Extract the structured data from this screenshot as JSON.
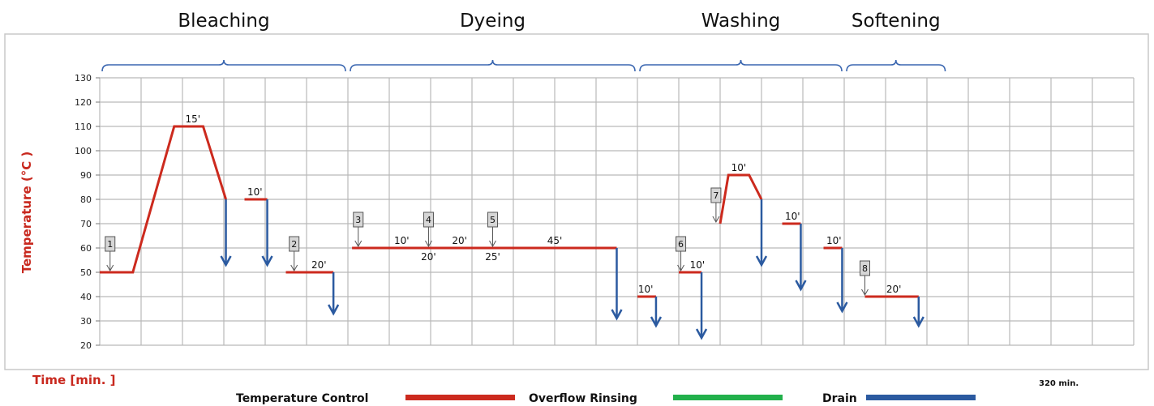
{
  "chart_data": {
    "type": "line",
    "ylabel": "Temperature (°C )",
    "xlabel": "Time [min. ]",
    "end_time_label": "320 min.",
    "ylim": [
      20,
      130
    ],
    "yticks": [
      "20",
      "30",
      "40",
      "50",
      "60",
      "70",
      "80",
      "90",
      "100",
      "110",
      "120",
      "130"
    ],
    "grid": true,
    "stages": [
      {
        "label": "Bleaching",
        "from_col": 0,
        "to_col": 6
      },
      {
        "label": "Dyeing",
        "from_col": 6,
        "to_col": 13
      },
      {
        "label": "Washing",
        "from_col": 13,
        "to_col": 18
      },
      {
        "label": "Softening",
        "from_col": 18,
        "to_col": 20.5
      }
    ],
    "temperature_segments": [
      {
        "points": [
          [
            0,
            50
          ],
          [
            0.8,
            50
          ],
          [
            1.8,
            110
          ],
          [
            2.5,
            110
          ],
          [
            3.05,
            80
          ]
        ]
      },
      {
        "points": [
          [
            3.5,
            80
          ],
          [
            4.05,
            80
          ]
        ]
      },
      {
        "points": [
          [
            4.5,
            50
          ],
          [
            5.65,
            50
          ]
        ]
      },
      {
        "points": [
          [
            6.1,
            60
          ],
          [
            12.5,
            60
          ]
        ]
      },
      {
        "points": [
          [
            13.0,
            40
          ],
          [
            13.45,
            40
          ]
        ]
      },
      {
        "points": [
          [
            14.0,
            50
          ],
          [
            14.55,
            50
          ]
        ]
      },
      {
        "points": [
          [
            15.0,
            70
          ],
          [
            15.2,
            90
          ],
          [
            15.7,
            90
          ],
          [
            16.0,
            80
          ]
        ]
      },
      {
        "points": [
          [
            16.5,
            70
          ],
          [
            16.95,
            70
          ]
        ]
      },
      {
        "points": [
          [
            17.5,
            60
          ],
          [
            17.95,
            60
          ]
        ]
      },
      {
        "points": [
          [
            18.5,
            40
          ],
          [
            19.8,
            40
          ]
        ]
      }
    ],
    "drains": [
      {
        "x": 3.05,
        "from": 80,
        "to": 53
      },
      {
        "x": 4.05,
        "from": 80,
        "to": 53
      },
      {
        "x": 5.65,
        "from": 50,
        "to": 33
      },
      {
        "x": 12.5,
        "from": 60,
        "to": 31
      },
      {
        "x": 13.45,
        "from": 40,
        "to": 28
      },
      {
        "x": 14.55,
        "from": 50,
        "to": 23
      },
      {
        "x": 16.0,
        "from": 80,
        "to": 53
      },
      {
        "x": 16.95,
        "from": 70,
        "to": 43
      },
      {
        "x": 17.95,
        "from": 60,
        "to": 34
      },
      {
        "x": 19.8,
        "from": 40,
        "to": 28
      }
    ],
    "steps": [
      {
        "label": "1",
        "x": 0.25,
        "y": 50
      },
      {
        "label": "2",
        "x": 4.7,
        "y": 50
      },
      {
        "label": "3",
        "x": 6.25,
        "y": 60
      },
      {
        "label": "4",
        "x": 7.95,
        "y": 60
      },
      {
        "label": "5",
        "x": 9.5,
        "y": 60
      },
      {
        "label": "6",
        "x": 14.05,
        "y": 50
      },
      {
        "label": "7",
        "x": 14.9,
        "y": 70
      },
      {
        "label": "8",
        "x": 18.5,
        "y": 40
      }
    ],
    "duration_labels": [
      {
        "text": "15'",
        "x": 2.25,
        "y": 110,
        "pos": "above"
      },
      {
        "text": "10'",
        "x": 3.75,
        "y": 80,
        "pos": "above"
      },
      {
        "text": "20'",
        "x": 5.3,
        "y": 50,
        "pos": "above"
      },
      {
        "text": "10'",
        "x": 7.3,
        "y": 60,
        "pos": "above"
      },
      {
        "text": "20'",
        "x": 8.7,
        "y": 60,
        "pos": "above"
      },
      {
        "text": "20'",
        "x": 7.95,
        "y": 60,
        "pos": "below"
      },
      {
        "text": "25'",
        "x": 9.5,
        "y": 60,
        "pos": "below"
      },
      {
        "text": "45'",
        "x": 11.0,
        "y": 60,
        "pos": "above"
      },
      {
        "text": "10'",
        "x": 13.2,
        "y": 40,
        "pos": "above"
      },
      {
        "text": "10'",
        "x": 14.45,
        "y": 50,
        "pos": "above"
      },
      {
        "text": "10'",
        "x": 15.45,
        "y": 90,
        "pos": "above"
      },
      {
        "text": "10'",
        "x": 16.75,
        "y": 70,
        "pos": "above"
      },
      {
        "text": "10'",
        "x": 17.75,
        "y": 60,
        "pos": "above"
      },
      {
        "text": "20'",
        "x": 19.2,
        "y": 40,
        "pos": "above"
      }
    ],
    "legend": [
      {
        "label": "Temperature Control",
        "color": "#cc2a1e"
      },
      {
        "label": "Overflow Rinsing",
        "color": "#22b04b"
      },
      {
        "label": "Drain",
        "color": "#2b5aa0"
      }
    ]
  },
  "colors": {
    "temperature": "#cc2a1e",
    "rinsing": "#22b04b",
    "drain": "#2b5aa0",
    "bracket": "#3a66b0",
    "grid": "#b9b9b9"
  }
}
